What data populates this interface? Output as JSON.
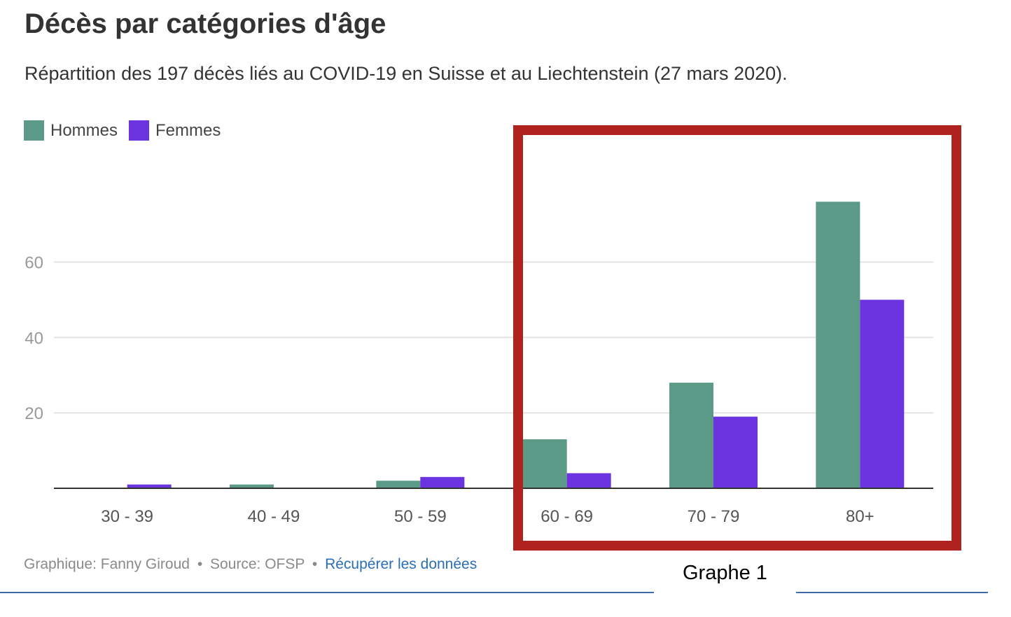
{
  "header": {
    "title": "Décès par catégories d'âge",
    "subtitle": "Répartition des 197 décès liés au COVID-19 en Suisse et au Liechtenstein (27 mars 2020)."
  },
  "legend": {
    "items": [
      {
        "label": "Hommes",
        "color": "#5a9a87"
      },
      {
        "label": "Femmes",
        "color": "#6c33e0"
      }
    ]
  },
  "footer": {
    "credit": "Graphique: Fanny Giroud",
    "source": "Source: OFSP",
    "link": "Récupérer les données",
    "separator": "•"
  },
  "caption": "Graphe 1",
  "colors": {
    "hommes": "#5a9a87",
    "femmes": "#6c33e0",
    "highlight": "#b0221d",
    "grid": "#e4e4e4",
    "axis": "#333333",
    "tick": "#999999",
    "rule": "#3e6aad"
  },
  "chart_data": {
    "type": "bar",
    "title": "Décès par catégories d'âge",
    "subtitle": "Répartition des 197 décès liés au COVID-19 en Suisse et au Liechtenstein (27 mars 2020).",
    "categories": [
      "30 - 39",
      "40 - 49",
      "50 - 59",
      "60 - 69",
      "70 - 79",
      "80+"
    ],
    "series": [
      {
        "name": "Hommes",
        "values": [
          0,
          1,
          2,
          13,
          28,
          76
        ]
      },
      {
        "name": "Femmes",
        "values": [
          1,
          0,
          3,
          4,
          19,
          50
        ]
      }
    ],
    "yticks": [
      20,
      40,
      60
    ],
    "ylim": [
      0,
      80
    ],
    "xlabel": "",
    "ylabel": "",
    "grid": true,
    "legend_position": "top-left",
    "highlighted_categories": [
      "60 - 69",
      "70 - 79",
      "80+"
    ]
  }
}
